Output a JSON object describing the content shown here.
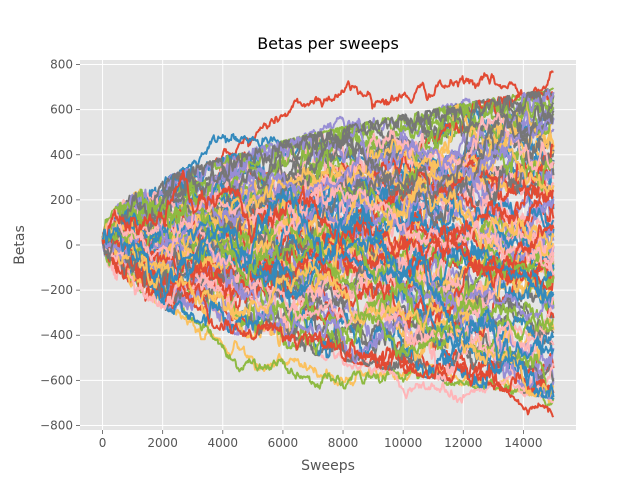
{
  "chart_data": {
    "type": "line",
    "title": "Betas per sweeps",
    "xlabel": "Sweeps",
    "ylabel": "Betas",
    "xlim": [
      -750,
      15750
    ],
    "ylim": [
      -820,
      820
    ],
    "x_ticks": [
      0,
      2000,
      4000,
      6000,
      8000,
      10000,
      12000,
      14000
    ],
    "y_ticks": [
      -800,
      -600,
      -400,
      -200,
      0,
      200,
      400,
      600,
      800
    ],
    "x_tick_labels": [
      "0",
      "2000",
      "4000",
      "6000",
      "8000",
      "10000",
      "12000",
      "14000"
    ],
    "y_tick_labels": [
      "−800",
      "−600",
      "−400",
      "−200",
      "0",
      "200",
      "400",
      "600",
      "800"
    ],
    "grid": true,
    "style": "ggplot",
    "background_color": "#E5E5E5",
    "series_count": 100,
    "x_range": [
      0,
      15000
    ],
    "start_value": 25,
    "colors": [
      "#E24A33",
      "#348ABD",
      "#988ED5",
      "#777777",
      "#FBC15E",
      "#8EBA42",
      "#FFB5B8"
    ],
    "series": [
      {
        "x": [
          0,
          2000,
          4000,
          6000,
          8000,
          10000,
          12000,
          14000,
          15000
        ],
        "values": [
          25,
          210,
          390,
          580,
          690,
          650,
          720,
          690,
          740
        ]
      },
      {
        "x": [
          0,
          2000,
          4000,
          6000,
          8000,
          10000,
          12000,
          14000,
          15000
        ],
        "values": [
          25,
          230,
          470,
          440,
          400,
          380,
          420,
          520,
          560
        ]
      },
      {
        "x": [
          0,
          2000,
          4000,
          6000,
          8000,
          10000,
          12000,
          14000,
          15000
        ],
        "values": [
          25,
          180,
          330,
          420,
          570,
          480,
          640,
          560,
          600
        ]
      },
      {
        "x": [
          0,
          2000,
          4000,
          6000,
          8000,
          10000,
          12000,
          14000,
          15000
        ],
        "values": [
          25,
          220,
          300,
          360,
          420,
          460,
          520,
          580,
          620
        ]
      },
      {
        "x": [
          0,
          2000,
          4000,
          6000,
          8000,
          10000,
          12000,
          14000,
          15000
        ],
        "values": [
          25,
          -240,
          -430,
          -530,
          -600,
          -560,
          -580,
          -640,
          -700
        ]
      },
      {
        "x": [
          0,
          2000,
          4000,
          6000,
          8000,
          10000,
          12000,
          14000,
          15000
        ],
        "values": [
          25,
          -200,
          -470,
          -560,
          -610,
          -560,
          -600,
          -660,
          -680
        ]
      },
      {
        "x": [
          0,
          2000,
          4000,
          6000,
          8000,
          10000,
          12000,
          14000,
          15000
        ],
        "values": [
          25,
          -230,
          -300,
          -400,
          -500,
          -600,
          -650,
          -620,
          -720
        ]
      },
      {
        "x": [
          0,
          2000,
          4000,
          6000,
          8000,
          10000,
          12000,
          14000,
          15000
        ],
        "values": [
          25,
          -180,
          -280,
          -380,
          -460,
          -500,
          -560,
          -720,
          -740
        ]
      }
    ]
  }
}
